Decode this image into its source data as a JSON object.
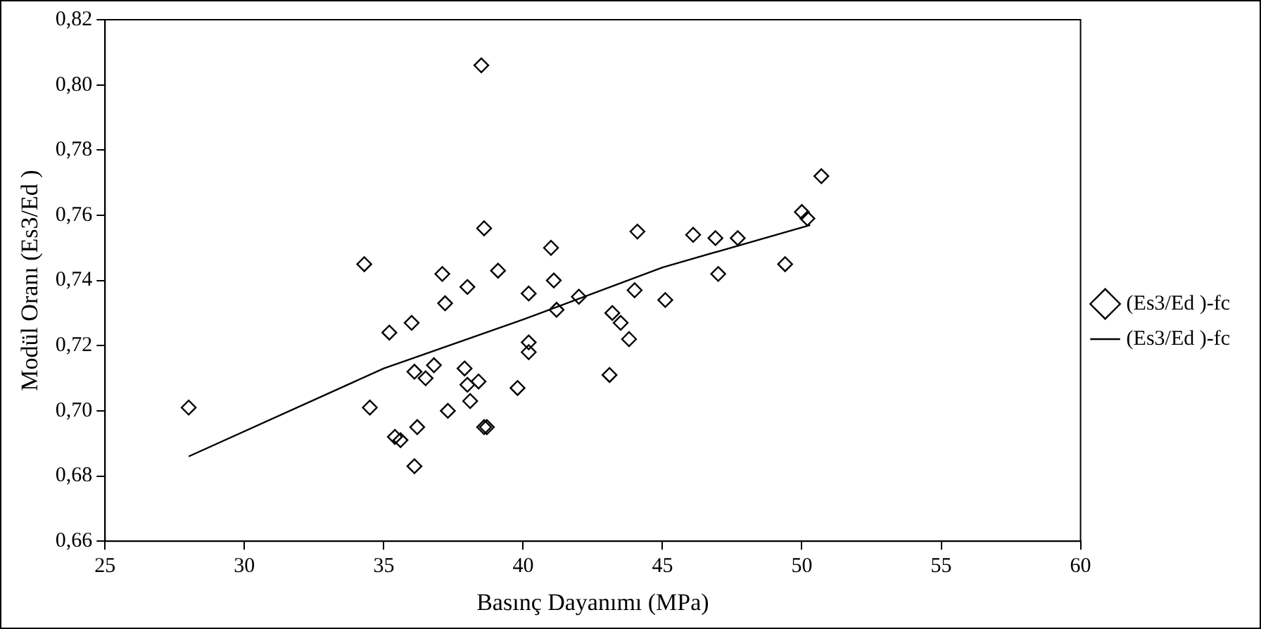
{
  "chart_data": {
    "type": "scatter",
    "xlabel": "Basınç Dayanımı (MPa)",
    "ylabel": "Modül Oranı (Es3/Ed )",
    "xlim": [
      25,
      60
    ],
    "xticks": [
      25,
      30,
      35,
      40,
      45,
      50,
      55,
      60
    ],
    "ylim": [
      0.66,
      0.82
    ],
    "yticks": [
      {
        "value": 0.66,
        "label": "0,66"
      },
      {
        "value": 0.68,
        "label": "0,68"
      },
      {
        "value": 0.7,
        "label": "0,70"
      },
      {
        "value": 0.72,
        "label": "0,72"
      },
      {
        "value": 0.74,
        "label": "0,74"
      },
      {
        "value": 0.76,
        "label": "0,76"
      },
      {
        "value": 0.78,
        "label": "0,78"
      },
      {
        "value": 0.8,
        "label": "0,80"
      },
      {
        "value": 0.82,
        "label": "0,82"
      }
    ],
    "grid": false,
    "legend": "right",
    "marker": "diamond",
    "series": [
      {
        "name": "(Es3/Ed )-fc",
        "type": "scatter",
        "color": "#000000",
        "x": [
          28,
          34.3,
          34.5,
          35.2,
          35.4,
          35.6,
          36,
          36.1,
          36.2,
          36.1,
          36.5,
          36.8,
          37.1,
          37.2,
          37.3,
          37.9,
          38,
          38,
          38.1,
          38.4,
          38.5,
          38.6,
          38.6,
          38.7,
          39.1,
          39.8,
          40.2,
          40.2,
          40.2,
          41,
          41.1,
          41.2,
          42,
          43.1,
          43.2,
          43.5,
          43.8,
          44,
          44.1,
          45.1,
          46.1,
          46.9,
          47,
          47.7,
          49.4,
          50,
          50.2,
          50.7
        ],
        "values": [
          0.701,
          0.745,
          0.701,
          0.724,
          0.692,
          0.691,
          0.727,
          0.712,
          0.695,
          0.683,
          0.71,
          0.714,
          0.742,
          0.733,
          0.7,
          0.713,
          0.738,
          0.708,
          0.703,
          0.709,
          0.806,
          0.756,
          0.695,
          0.695,
          0.743,
          0.707,
          0.736,
          0.721,
          0.718,
          0.75,
          0.74,
          0.731,
          0.735,
          0.711,
          0.73,
          0.727,
          0.722,
          0.737,
          0.755,
          0.734,
          0.754,
          0.753,
          0.742,
          0.753,
          0.745,
          0.761,
          0.759,
          0.772
        ]
      },
      {
        "name": "(Es3/Ed )-fc",
        "type": "line",
        "color": "#000000",
        "line_style": "solid",
        "marker": "none",
        "x": [
          28,
          35,
          40,
          45,
          50.3
        ],
        "values": [
          0.686,
          0.713,
          0.728,
          0.744,
          0.757
        ]
      }
    ]
  }
}
